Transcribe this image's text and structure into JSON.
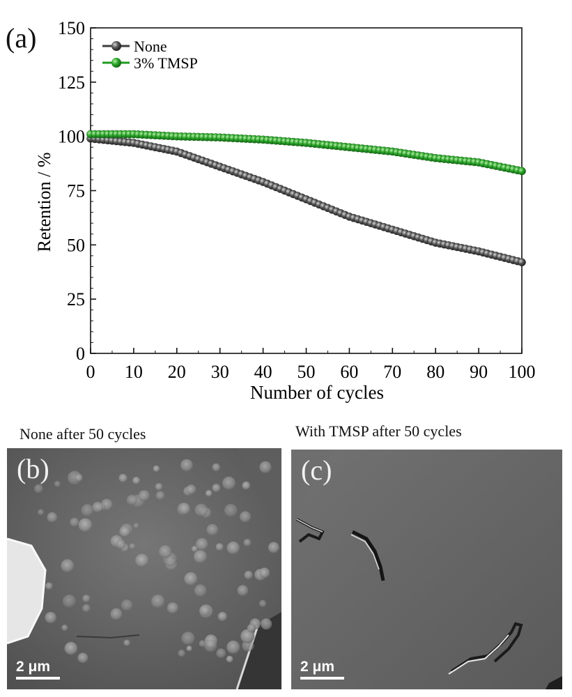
{
  "panels": {
    "a_label": "(a)",
    "b_label": "(b)",
    "c_label": "(c)"
  },
  "sem_images": [
    {
      "caption": "None after 50 cycles",
      "scale_bar": "2 μm"
    },
    {
      "caption": "With TMSP after 50 cycles",
      "scale_bar": "2 μm"
    }
  ],
  "colors": {
    "none": "#3c3c3c",
    "tmsp": "#1f9a1f"
  },
  "chart_data": {
    "type": "line",
    "title": "",
    "xlabel": "Number of cycles",
    "ylabel": "Retention / %",
    "xlim": [
      0,
      100
    ],
    "ylim": [
      0,
      150
    ],
    "xticks": [
      0,
      10,
      20,
      30,
      40,
      50,
      60,
      70,
      80,
      90,
      100
    ],
    "yticks": [
      0,
      25,
      50,
      75,
      100,
      125,
      150
    ],
    "grid": false,
    "legend_position": "top-left",
    "x": [
      0,
      10,
      20,
      30,
      40,
      50,
      60,
      70,
      80,
      90,
      100
    ],
    "series": [
      {
        "name": "None",
        "color": "#3c3c3c",
        "values": [
          99,
          97,
          93,
          86,
          79,
          71,
          63,
          57,
          51,
          47,
          42
        ]
      },
      {
        "name": "3% TMSP",
        "color": "#1f9a1f",
        "values": [
          101,
          101,
          100,
          99.5,
          98.5,
          97,
          95,
          93,
          90,
          88,
          84
        ]
      }
    ]
  }
}
